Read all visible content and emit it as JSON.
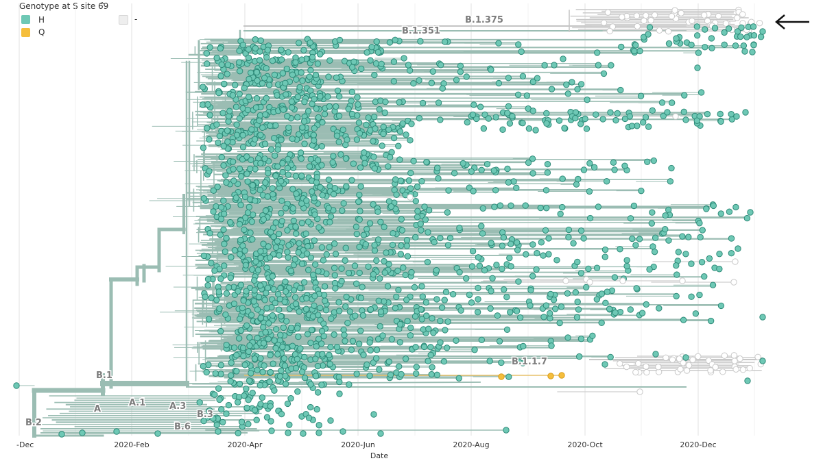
{
  "legend": {
    "title": "Genotype at S site 69",
    "collapse_icon": "chevron-up-icon",
    "items": [
      {
        "label": "H",
        "color": "#6ec8b5"
      },
      {
        "label": "Q",
        "color": "#f5be3c"
      },
      {
        "label": "-",
        "color": "#eeeeee"
      }
    ]
  },
  "chart_data": {
    "type": "phylogenetic-tree",
    "xlabel": "Date",
    "x_ticks": [
      "-Dec",
      "2020-Feb",
      "2020-Apr",
      "2020-Jun",
      "2020-Aug",
      "2020-Oct",
      "2020-Dec"
    ],
    "clade_labels": [
      "B.1.375",
      "B.1.351",
      "B.1.1.7",
      "B.1",
      "A.1",
      "A",
      "A.3",
      "B.3",
      "B.2",
      "B.6"
    ],
    "colors": {
      "branch": "#9bbdb3",
      "H": "#6ec8b5",
      "Q": "#f5be3c",
      "deletion": "#eeeeee",
      "tip_stroke": "#2e8a78"
    },
    "annotation": "arrow-left-icon"
  }
}
